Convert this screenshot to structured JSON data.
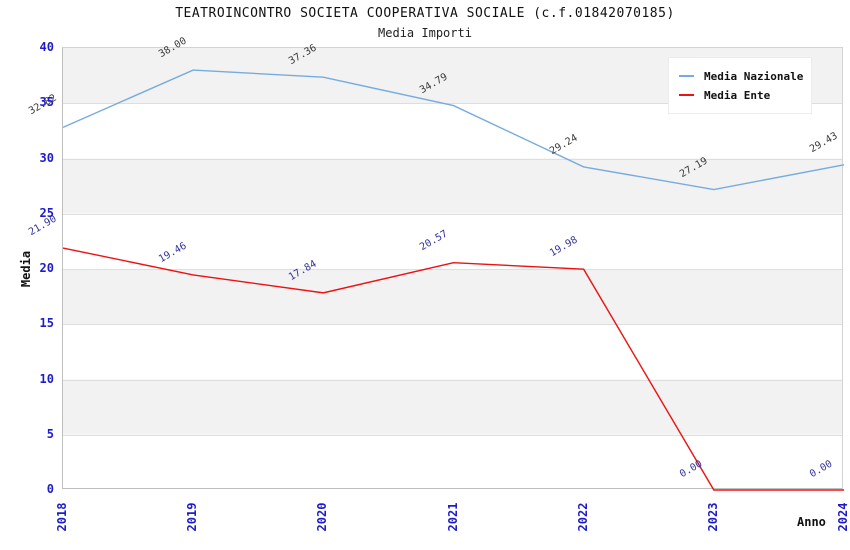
{
  "header": {
    "title": "TEATROINCONTRO SOCIETA COOPERATIVA SOCIALE (c.f.01842070185)",
    "subtitle": "Media Importi"
  },
  "chart_data": {
    "type": "line",
    "title": "TEATROINCONTRO SOCIETA COOPERATIVA SOCIALE (c.f.01842070185)",
    "subtitle": "Media Importi",
    "xlabel": "Anno",
    "ylabel": "Media",
    "x": [
      2018,
      2019,
      2020,
      2021,
      2022,
      2023,
      2024
    ],
    "x_tick_labels": [
      "2018",
      "2019",
      "2020",
      "2021",
      "2022",
      "2023",
      "2024"
    ],
    "ylim": [
      0,
      40
    ],
    "yticks": [
      0,
      5,
      10,
      15,
      20,
      25,
      30,
      35,
      40
    ],
    "grid": "horizontal",
    "banding": true,
    "legend_position": "top-right",
    "series": [
      {
        "name": "Media Nazionale",
        "color": "#76acdd",
        "label_color": "#3a3a3a",
        "values": [
          32.82,
          38.0,
          37.36,
          34.79,
          29.24,
          27.19,
          29.43
        ],
        "labels": [
          "32.82",
          "38.00",
          "37.36",
          "34.79",
          "29.24",
          "27.19",
          "29.43"
        ]
      },
      {
        "name": "Media Ente",
        "color": "#ee1111",
        "label_color": "#333399",
        "values": [
          21.9,
          19.46,
          17.84,
          20.57,
          19.98,
          0.0,
          0.0
        ],
        "labels": [
          "21.90",
          "19.46",
          "17.84",
          "20.57",
          "19.98",
          "0.00",
          "0.00"
        ]
      }
    ],
    "colors": {
      "axis_tick_text": "#1c1ccd",
      "band_gray": "#f2f2f2",
      "gridline": "#dedede"
    }
  }
}
